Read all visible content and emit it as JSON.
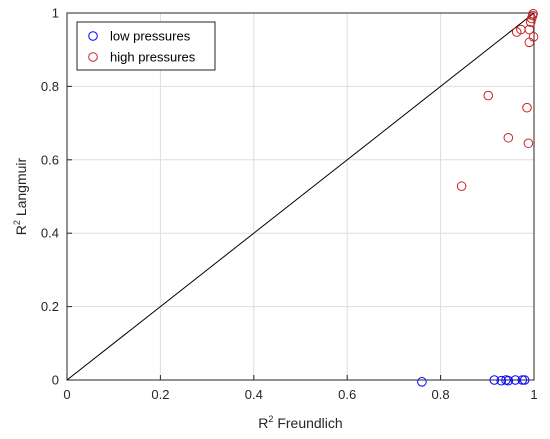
{
  "chart_data": {
    "type": "scatter",
    "xlabel": "R",
    "xlabel_sup": "2",
    "xlabel_rest": " Freundlich",
    "ylabel": "R",
    "ylabel_sup": "2",
    "ylabel_rest": " Langmuir",
    "xlim": [
      0,
      1
    ],
    "ylim": [
      0,
      1
    ],
    "xticks": [
      "0",
      "0.2",
      "0.4",
      "0.6",
      "0.8",
      "1"
    ],
    "yticks": [
      "0",
      "0.2",
      "0.4",
      "0.6",
      "0.8",
      "1"
    ],
    "grid": true,
    "legend_position": "top-left",
    "reference_line": {
      "x": [
        0,
        1
      ],
      "y": [
        0,
        1
      ],
      "color": "#000000"
    },
    "series": [
      {
        "name": "low pressures",
        "color": "#0000ff",
        "x": [
          0.76,
          0.915,
          0.93,
          0.94,
          0.945,
          0.96,
          0.975,
          0.98
        ],
        "y": [
          -0.005,
          0.0,
          -0.002,
          0.0,
          -0.002,
          0.0,
          0.0,
          0.0
        ]
      },
      {
        "name": "high pressures",
        "color": "#cc2222",
        "x": [
          0.845,
          0.902,
          0.945,
          0.963,
          0.972,
          0.985,
          0.988,
          0.99,
          0.99,
          0.993,
          0.995,
          0.997,
          0.998,
          0.999
        ],
        "y": [
          0.528,
          0.775,
          0.66,
          0.948,
          0.955,
          0.742,
          0.645,
          0.955,
          0.92,
          0.975,
          0.985,
          0.993,
          0.998,
          0.935
        ]
      }
    ]
  }
}
